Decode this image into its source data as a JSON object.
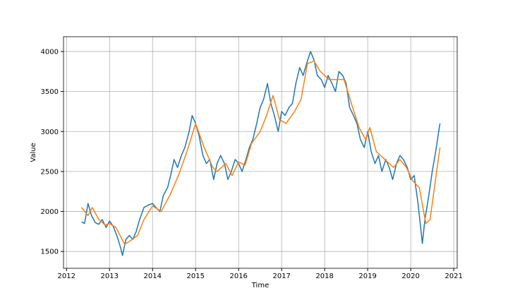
{
  "chart_data": {
    "type": "line",
    "xlabel": "Time",
    "ylabel": "Value",
    "xlim": [
      2011.93,
      2021.08
    ],
    "xticks": [
      2012,
      2013,
      2014,
      2015,
      2016,
      2017,
      2018,
      2019,
      2020,
      2021
    ],
    "ylim": [
      1290,
      4185
    ],
    "yticks": [
      1500,
      2000,
      2500,
      3000,
      3500,
      4000
    ],
    "grid": true,
    "series": [
      {
        "color": "#1f77b4",
        "x": [
          2012.35,
          2012.42,
          2012.5,
          2012.58,
          2012.67,
          2012.75,
          2012.83,
          2012.92,
          2013.0,
          2013.08,
          2013.17,
          2013.25,
          2013.3,
          2013.38,
          2013.46,
          2013.54,
          2013.62,
          2013.7,
          2013.8,
          2013.9,
          2014.0,
          2014.08,
          2014.17,
          2014.25,
          2014.35,
          2014.42,
          2014.5,
          2014.58,
          2014.67,
          2014.75,
          2014.85,
          2014.92,
          2015.0,
          2015.08,
          2015.17,
          2015.25,
          2015.33,
          2015.42,
          2015.5,
          2015.58,
          2015.67,
          2015.75,
          2015.83,
          2015.92,
          2016.0,
          2016.08,
          2016.17,
          2016.25,
          2016.33,
          2016.42,
          2016.5,
          2016.58,
          2016.67,
          2016.75,
          2016.83,
          2016.92,
          2017.0,
          2017.08,
          2017.17,
          2017.25,
          2017.33,
          2017.42,
          2017.5,
          2017.58,
          2017.67,
          2017.75,
          2017.83,
          2017.92,
          2018.0,
          2018.08,
          2018.17,
          2018.25,
          2018.33,
          2018.42,
          2018.5,
          2018.58,
          2018.67,
          2018.75,
          2018.83,
          2018.92,
          2019.0,
          2019.08,
          2019.17,
          2019.25,
          2019.33,
          2019.42,
          2019.5,
          2019.58,
          2019.67,
          2019.75,
          2019.83,
          2019.92,
          2020.0,
          2020.08,
          2020.17,
          2020.22,
          2020.27,
          2020.33,
          2020.42,
          2020.5,
          2020.58,
          2020.65,
          2020.68
        ],
        "values": [
          1870,
          1850,
          2100,
          1950,
          1860,
          1840,
          1900,
          1800,
          1880,
          1820,
          1700,
          1560,
          1450,
          1650,
          1700,
          1650,
          1750,
          1900,
          2050,
          2080,
          2100,
          2050,
          2000,
          2200,
          2300,
          2450,
          2650,
          2550,
          2700,
          2800,
          3000,
          3200,
          3100,
          2950,
          2700,
          2600,
          2650,
          2400,
          2600,
          2700,
          2600,
          2400,
          2500,
          2650,
          2600,
          2500,
          2650,
          2800,
          2900,
          3100,
          3300,
          3400,
          3600,
          3350,
          3200,
          3000,
          3250,
          3200,
          3300,
          3350,
          3600,
          3800,
          3700,
          3850,
          4000,
          3900,
          3700,
          3650,
          3550,
          3700,
          3600,
          3500,
          3750,
          3700,
          3600,
          3300,
          3200,
          3100,
          2900,
          2800,
          3000,
          2750,
          2600,
          2700,
          2500,
          2650,
          2550,
          2400,
          2600,
          2700,
          2650,
          2550,
          2400,
          2450,
          2100,
          1850,
          1600,
          1900,
          2200,
          2500,
          2750,
          3000,
          3100
        ]
      },
      {
        "color": "#ff7f0e",
        "x": [
          2012.35,
          2012.5,
          2012.6,
          2012.75,
          2012.9,
          2013.0,
          2013.15,
          2013.35,
          2013.5,
          2013.65,
          2013.8,
          2014.0,
          2014.2,
          2014.4,
          2014.6,
          2014.8,
          2015.0,
          2015.2,
          2015.4,
          2015.5,
          2015.7,
          2015.85,
          2016.0,
          2016.15,
          2016.3,
          2016.5,
          2016.65,
          2016.8,
          2016.95,
          2017.1,
          2017.3,
          2017.45,
          2017.6,
          2017.75,
          2017.9,
          2018.1,
          2018.3,
          2018.45,
          2018.65,
          2018.8,
          2018.95,
          2019.05,
          2019.2,
          2019.4,
          2019.6,
          2019.75,
          2019.9,
          2020.05,
          2020.2,
          2020.35,
          2020.45,
          2020.55,
          2020.68
        ],
        "values": [
          2050,
          1950,
          2050,
          1900,
          1830,
          1850,
          1800,
          1590,
          1640,
          1700,
          1900,
          2070,
          2000,
          2200,
          2450,
          2750,
          3100,
          2800,
          2550,
          2500,
          2600,
          2450,
          2620,
          2580,
          2850,
          3000,
          3200,
          3450,
          3150,
          3100,
          3250,
          3400,
          3850,
          3880,
          3750,
          3650,
          3650,
          3650,
          3300,
          3050,
          2900,
          3050,
          2750,
          2650,
          2550,
          2650,
          2550,
          2380,
          2300,
          1850,
          1900,
          2300,
          2800
        ]
      }
    ]
  }
}
